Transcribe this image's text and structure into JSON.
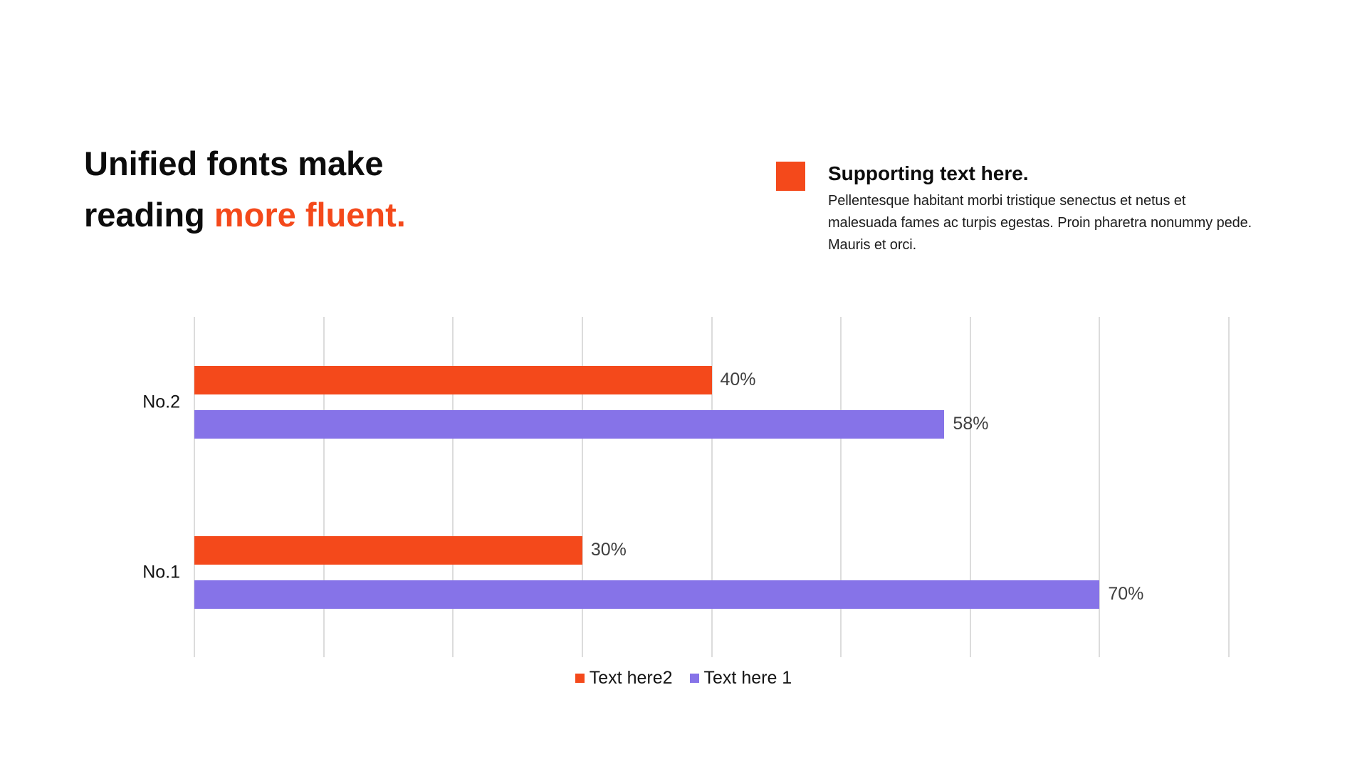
{
  "slide": {
    "title": {
      "line1": "Unified fonts make",
      "line2_prefix": "reading ",
      "line2_accent": "more fluent."
    },
    "supporting": {
      "heading": "Supporting text here.",
      "body": "Pellentesque habitant morbi tristique senectus et netus et\nmalesuada fames ac turpis egestas. Proin pharetra nonummy pede.\nMauris et orci."
    }
  },
  "colors": {
    "accent_orange": "#F4491B",
    "accent_purple": "#8673E8",
    "gridline": "#DCDCDC",
    "value_label": "#3F3F3F",
    "text_black": "#0C0C0C"
  },
  "chart_data": {
    "type": "bar",
    "orientation": "horizontal",
    "category_order": "top-to-bottom",
    "categories": [
      "No.2",
      "No.1"
    ],
    "series": [
      {
        "name": "Text here2",
        "color": "#F4491B",
        "values": [
          40,
          30
        ]
      },
      {
        "name": "Text here 1",
        "color": "#8673E8",
        "values": [
          58,
          70
        ]
      }
    ],
    "value_suffix": "%",
    "xlim": [
      0,
      80
    ],
    "grid_step": 10,
    "grid": true,
    "legend_position": "bottom",
    "value_labels_shown": true
  }
}
